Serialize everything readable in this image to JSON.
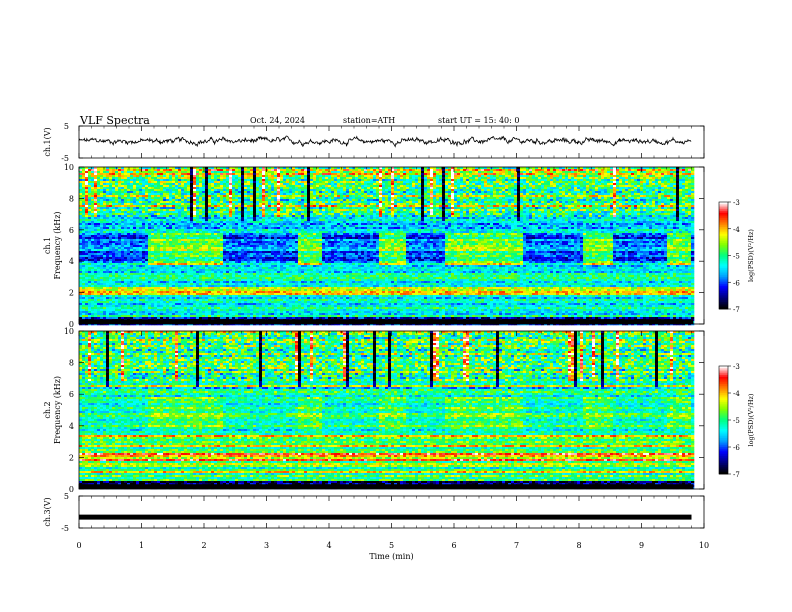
{
  "header": {
    "title": "VLF  Spectra",
    "date": "Oct. 24, 2024",
    "station": "station=ATH",
    "start_ut": "start  UT  =   15: 40: 0"
  },
  "chart_data": [
    {
      "type": "line",
      "panel": "ch1-waveform",
      "ylabel": "ch.1(V)",
      "ylim": [
        -5,
        5
      ],
      "yticks": [
        "5",
        "-5"
      ],
      "x": [
        0,
        9.8
      ],
      "description_values": {
        "mean": 0.3,
        "amplitude": 0.9
      }
    },
    {
      "type": "heatmap",
      "panel": "ch1-spectrogram",
      "ylabel": "ch.1\nFrequency  (kHz)",
      "ylim": [
        0,
        10
      ],
      "yticks": [
        "0",
        "2",
        "4",
        "6",
        "8",
        "10"
      ],
      "xlim": [
        0,
        10
      ],
      "colorbar": {
        "label": "log(PSD)(V²/Hz)",
        "ticks": [
          "-3",
          "-4",
          "-5",
          "-6",
          "-7"
        ],
        "range": [
          -7,
          -3
        ]
      },
      "on_segments_min": [
        [
          1.1,
          2.3
        ],
        [
          3.5,
          3.85
        ],
        [
          4.8,
          5.2
        ],
        [
          5.85,
          7.1
        ],
        [
          8.05,
          8.5
        ],
        [
          9.4,
          9.75
        ]
      ]
    },
    {
      "type": "heatmap",
      "panel": "ch2-spectrogram",
      "ylabel": "ch.2\nFrequency  (kHz)",
      "ylim": [
        0,
        10
      ],
      "yticks": [
        "0",
        "2",
        "4",
        "6",
        "8",
        "10"
      ],
      "xlim": [
        0,
        10
      ],
      "colorbar": {
        "label": "log(PSD)(V²/Hz)",
        "ticks": [
          "-3",
          "-4",
          "-5",
          "-6",
          "-7"
        ],
        "range": [
          -7,
          -3
        ]
      },
      "on_segments_min": [
        [
          1.1,
          2.3
        ],
        [
          3.5,
          3.85
        ],
        [
          4.8,
          5.2
        ],
        [
          5.85,
          7.1
        ],
        [
          8.05,
          8.5
        ],
        [
          9.4,
          9.75
        ]
      ]
    },
    {
      "type": "line",
      "panel": "ch3-waveform",
      "ylabel": "ch.3(V)",
      "ylim": [
        -5,
        5
      ],
      "yticks": [
        "5",
        "-5"
      ],
      "x": [
        0,
        9.8
      ],
      "description_values": {
        "mean": -1.6,
        "amplitude": 0.25
      }
    }
  ],
  "xaxis": {
    "label": "Time  (min)",
    "ticks": [
      "0",
      "1",
      "2",
      "3",
      "4",
      "5",
      "6",
      "7",
      "8",
      "9",
      "10"
    ],
    "xlim": [
      0,
      10
    ]
  },
  "colors": {
    "colormap": [
      "#000000",
      "#000080",
      "#0000ff",
      "#00a0ff",
      "#00ffff",
      "#00ff80",
      "#80ff00",
      "#ffff00",
      "#ff8000",
      "#ff0000",
      "#ffffff"
    ]
  }
}
